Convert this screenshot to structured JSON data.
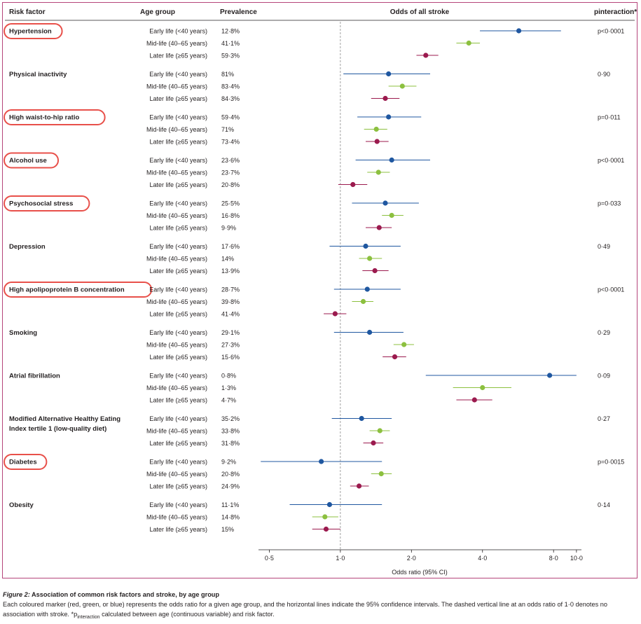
{
  "headers": {
    "risk_factor": "Risk factor",
    "age_group": "Age group",
    "prevalence": "Prevalence",
    "odds": "Odds of all stroke",
    "pinteraction": "pinteraction*"
  },
  "age_groups": [
    "Early life (<40 years)",
    "Mid-life (40–65 years)",
    "Later life (≥65 years)"
  ],
  "colors": {
    "early": "#1f57a0",
    "mid": "#8cc03f",
    "later": "#9b1a4e",
    "circle": "#e8504a",
    "border": "#b5457b"
  },
  "chart_data": {
    "type": "forest",
    "title": "Odds of all stroke",
    "xlabel": "Odds ratio (95% CI)",
    "xscale": "log",
    "xlim": [
      0.45,
      10.5
    ],
    "xticks": [
      0.5,
      1.0,
      2.0,
      4.0,
      8.0,
      10.0
    ],
    "xtick_labels": [
      "0·5",
      "1·0",
      "2·0",
      "4·0",
      "8·0",
      "10·0"
    ],
    "reference_line": 1.0,
    "factors": [
      {
        "name": "Hypertension",
        "highlighted": true,
        "p": "p<0·0001",
        "groups": [
          {
            "prev": "12·8%",
            "or": 5.7,
            "lo": 3.9,
            "hi": 8.6
          },
          {
            "prev": "41·1%",
            "or": 3.5,
            "lo": 3.1,
            "hi": 3.9
          },
          {
            "prev": "59·3%",
            "or": 2.3,
            "lo": 2.1,
            "hi": 2.6
          }
        ]
      },
      {
        "name": "Physical inactivity",
        "highlighted": false,
        "p": "0·90",
        "groups": [
          {
            "prev": "81%",
            "or": 1.6,
            "lo": 1.03,
            "hi": 2.4
          },
          {
            "prev": "83·4%",
            "or": 1.83,
            "lo": 1.6,
            "hi": 2.1
          },
          {
            "prev": "84·3%",
            "or": 1.55,
            "lo": 1.35,
            "hi": 1.78
          }
        ]
      },
      {
        "name": "High waist-to-hip ratio",
        "highlighted": true,
        "p": "p=0·011",
        "groups": [
          {
            "prev": "59·4%",
            "or": 1.6,
            "lo": 1.18,
            "hi": 2.2
          },
          {
            "prev": "71%",
            "or": 1.42,
            "lo": 1.26,
            "hi": 1.58
          },
          {
            "prev": "73·4%",
            "or": 1.43,
            "lo": 1.28,
            "hi": 1.6
          }
        ]
      },
      {
        "name": "Alcohol use",
        "highlighted": true,
        "p": "p<0·0001",
        "groups": [
          {
            "prev": "23·6%",
            "or": 1.65,
            "lo": 1.16,
            "hi": 2.4
          },
          {
            "prev": "23·7%",
            "or": 1.45,
            "lo": 1.3,
            "hi": 1.62
          },
          {
            "prev": "20·8%",
            "or": 1.13,
            "lo": 0.98,
            "hi": 1.3
          }
        ]
      },
      {
        "name": "Psychosocial stress",
        "highlighted": true,
        "p": "p=0·033",
        "groups": [
          {
            "prev": "25·5%",
            "or": 1.55,
            "lo": 1.12,
            "hi": 2.15
          },
          {
            "prev": "16·8%",
            "or": 1.65,
            "lo": 1.5,
            "hi": 1.85
          },
          {
            "prev": "9·9%",
            "or": 1.46,
            "lo": 1.28,
            "hi": 1.65
          }
        ]
      },
      {
        "name": "Depression",
        "highlighted": false,
        "p": "0·49",
        "groups": [
          {
            "prev": "17·6%",
            "or": 1.28,
            "lo": 0.9,
            "hi": 1.8
          },
          {
            "prev": "14%",
            "or": 1.33,
            "lo": 1.2,
            "hi": 1.5
          },
          {
            "prev": "13·9%",
            "or": 1.4,
            "lo": 1.24,
            "hi": 1.6
          }
        ]
      },
      {
        "name": "High apolipoprotein B concentration",
        "highlighted": true,
        "p": "p<0·0001",
        "groups": [
          {
            "prev": "28·7%",
            "or": 1.3,
            "lo": 0.94,
            "hi": 1.8
          },
          {
            "prev": "39·8%",
            "or": 1.25,
            "lo": 1.12,
            "hi": 1.38
          },
          {
            "prev": "41·4%",
            "or": 0.95,
            "lo": 0.85,
            "hi": 1.06
          }
        ]
      },
      {
        "name": "Smoking",
        "highlighted": false,
        "p": "0·29",
        "groups": [
          {
            "prev": "29·1%",
            "or": 1.33,
            "lo": 0.94,
            "hi": 1.85
          },
          {
            "prev": "27·3%",
            "or": 1.86,
            "lo": 1.68,
            "hi": 2.05
          },
          {
            "prev": "15·6%",
            "or": 1.7,
            "lo": 1.51,
            "hi": 1.9
          }
        ]
      },
      {
        "name": "Atrial fibrillation",
        "highlighted": false,
        "p": "0·09",
        "groups": [
          {
            "prev": "0·8%",
            "or": 7.7,
            "lo": 2.3,
            "hi": 10.0
          },
          {
            "prev": "1·3%",
            "or": 4.0,
            "lo": 3.0,
            "hi": 5.3
          },
          {
            "prev": "4·7%",
            "or": 3.7,
            "lo": 3.1,
            "hi": 4.4
          }
        ]
      },
      {
        "name": "Modified Alternative Healthy Eating Index tertile 1 (low-quality diet)",
        "name_lines": [
          "Modified Alternative Healthy Eating",
          "Index tertile 1 (low-quality diet)"
        ],
        "highlighted": false,
        "p": "0·27",
        "groups": [
          {
            "prev": "35·2%",
            "or": 1.23,
            "lo": 0.92,
            "hi": 1.65
          },
          {
            "prev": "33·8%",
            "or": 1.47,
            "lo": 1.33,
            "hi": 1.62
          },
          {
            "prev": "31·8%",
            "or": 1.38,
            "lo": 1.25,
            "hi": 1.52
          }
        ]
      },
      {
        "name": "Diabetes",
        "highlighted": true,
        "p": "p=0·0015",
        "groups": [
          {
            "prev": "9·2%",
            "or": 0.83,
            "lo": 0.46,
            "hi": 1.5
          },
          {
            "prev": "20·8%",
            "or": 1.49,
            "lo": 1.35,
            "hi": 1.65
          },
          {
            "prev": "24·9%",
            "or": 1.2,
            "lo": 1.1,
            "hi": 1.32
          }
        ]
      },
      {
        "name": "Obesity",
        "highlighted": false,
        "p": "0·14",
        "groups": [
          {
            "prev": "11·1%",
            "or": 0.9,
            "lo": 0.61,
            "hi": 1.5
          },
          {
            "prev": "14·8%",
            "or": 0.86,
            "lo": 0.76,
            "hi": 0.98
          },
          {
            "prev": "15%",
            "or": 0.87,
            "lo": 0.76,
            "hi": 1.0
          }
        ]
      }
    ]
  },
  "caption": {
    "fig_label": "Figure 2:",
    "title_rest": " Association of common risk factors and stroke, by age group",
    "body": "Each coloured marker (red, green, or blue) represents the odds ratio for a given age group, and the horizontal lines indicate the 95% confidence intervals. The dashed vertical line at an odds ratio of 1·0 denotes no association with stroke.",
    "footnote_prefix": " *p",
    "footnote_sub": "interaction",
    "footnote_rest": " calculated between age (continuous variable) and risk factor."
  }
}
